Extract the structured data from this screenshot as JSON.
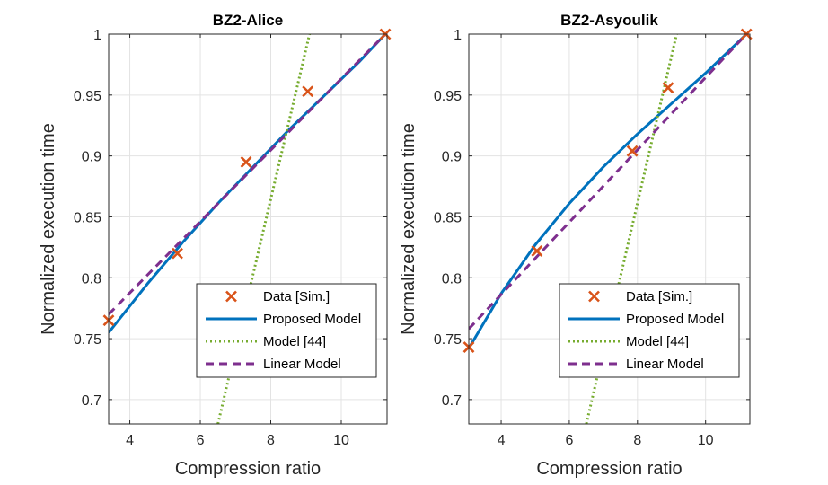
{
  "figure": {
    "ylabel": "Normalized execution time",
    "xlabel": "Compression ratio"
  },
  "colors": {
    "data": "#D95319",
    "proposed": "#0072BD",
    "model44": "#77AC30",
    "linear": "#7E2F8E",
    "grid": "#e3e3e3",
    "axis": "#262626"
  },
  "chart_data": [
    {
      "type": "line",
      "title": "BZ2-Alice",
      "xlabel": "Compression ratio",
      "ylabel": "Normalized execution time",
      "xlim": [
        3.4,
        11.3
      ],
      "ylim": [
        0.68,
        1.0
      ],
      "xticks": [
        4,
        6,
        8,
        10
      ],
      "yticks": [
        0.7,
        0.75,
        0.8,
        0.85,
        0.9,
        0.95,
        1
      ],
      "grid": true,
      "legend_position": "bottom-right",
      "legend": [
        "Data [Sim.]",
        "Proposed Model",
        "Model [44]",
        "Linear Model"
      ],
      "series": [
        {
          "name": "Data [Sim.]",
          "style": "markers-x",
          "x": [
            3.4,
            5.35,
            7.3,
            9.05,
            11.25
          ],
          "y": [
            0.765,
            0.82,
            0.895,
            0.953,
            1.0
          ]
        },
        {
          "name": "Proposed Model",
          "style": "solid",
          "x": [
            3.4,
            4.5,
            5.5,
            6.5,
            7.5,
            8.5,
            9.5,
            10.5,
            11.25
          ],
          "y": [
            0.755,
            0.795,
            0.829,
            0.861,
            0.891,
            0.921,
            0.949,
            0.977,
            1.0
          ]
        },
        {
          "name": "Model [44]",
          "style": "dotted",
          "x": [
            6.5,
            9.1
          ],
          "y": [
            0.68,
            1.0
          ]
        },
        {
          "name": "Linear Model",
          "style": "dashed",
          "x": [
            3.4,
            11.25
          ],
          "y": [
            0.77,
            1.0
          ]
        }
      ]
    },
    {
      "type": "line",
      "title": "BZ2-Asyoulik",
      "xlabel": "Compression ratio",
      "ylabel": "Normalized execution time",
      "xlim": [
        3.05,
        11.3
      ],
      "ylim": [
        0.68,
        1.0
      ],
      "xticks": [
        4,
        6,
        8,
        10
      ],
      "yticks": [
        0.7,
        0.75,
        0.8,
        0.85,
        0.9,
        0.95,
        1
      ],
      "grid": true,
      "legend_position": "bottom-right",
      "legend": [
        "Data [Sim.]",
        "Proposed Model",
        "Model [44]",
        "Linear Model"
      ],
      "series": [
        {
          "name": "Data [Sim.]",
          "style": "markers-x",
          "x": [
            3.05,
            5.05,
            7.85,
            8.9,
            11.2
          ],
          "y": [
            0.743,
            0.822,
            0.904,
            0.956,
            1.0
          ]
        },
        {
          "name": "Proposed Model",
          "style": "solid",
          "x": [
            3.05,
            4.0,
            5.0,
            6.0,
            7.0,
            8.0,
            9.0,
            10.0,
            11.2
          ],
          "y": [
            0.742,
            0.787,
            0.827,
            0.861,
            0.891,
            0.918,
            0.943,
            0.968,
            1.0
          ]
        },
        {
          "name": "Model [44]",
          "style": "dotted",
          "x": [
            6.5,
            9.15
          ],
          "y": [
            0.68,
            1.0
          ]
        },
        {
          "name": "Linear Model",
          "style": "dashed",
          "x": [
            3.05,
            11.2
          ],
          "y": [
            0.758,
            1.0
          ]
        }
      ]
    }
  ]
}
